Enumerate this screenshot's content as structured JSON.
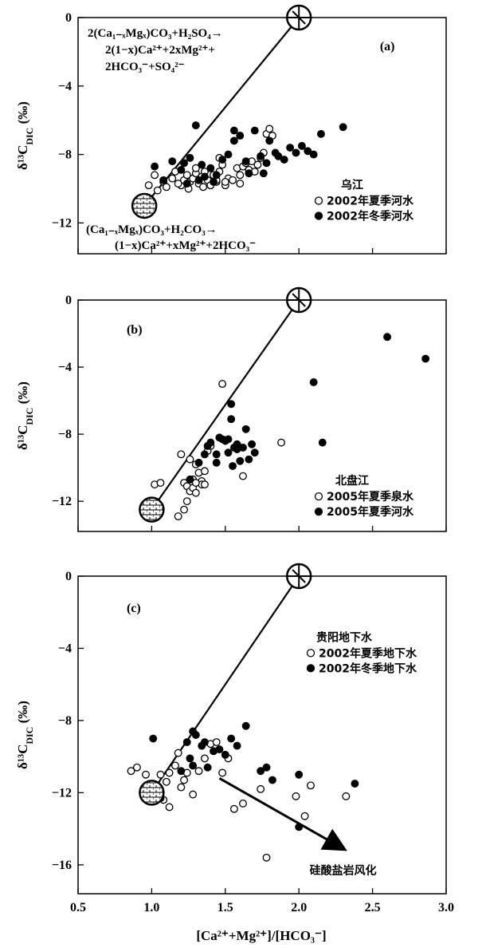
{
  "xlabel": "[Ca²⁺+Mg²⁺]/[HCO₃⁻]",
  "xticks": [
    "0.5",
    "1.0",
    "1.5",
    "2.0",
    "2.5",
    "3.0"
  ],
  "chart_data": [
    {
      "type": "scatter",
      "panel_label": "(a)",
      "ylabel": "δ¹³C_DIC (‰)",
      "xlim": [
        0.5,
        3.0
      ],
      "ylim": [
        -13.8,
        0
      ],
      "yticks": [
        0,
        -4,
        -8,
        -12
      ],
      "legend_title": "乌江",
      "legend_placement": "right",
      "line": [
        [
          0.95,
          -11
        ],
        [
          2.0,
          0
        ]
      ],
      "endmembers": [
        [
          2.0,
          0
        ],
        [
          0.95,
          -11
        ]
      ],
      "equation_top": [
        "2(Ca₁₋ₓMgₓ)CO₃+H₂SO₄→",
        "2(1−x)Ca²⁺+2xMg²⁺+",
        "2HCO₃⁻+SO₄²⁻"
      ],
      "equation_bottom": [
        "(Ca₁₋ₓMgₓ)CO₃+H₂CO₃→",
        "(1−x)Ca²⁺+xMg²⁺+2HCO₃⁻"
      ],
      "series": [
        {
          "name": "2002年夏季河水",
          "marker": "open",
          "x": [
            0.98,
            1.02,
            1.04,
            1.08,
            1.1,
            1.14,
            1.16,
            1.2,
            1.22,
            1.24,
            1.26,
            1.28,
            1.3,
            1.32,
            1.34,
            1.36,
            1.38,
            1.4,
            1.42,
            1.44,
            1.46,
            1.48,
            1.5,
            1.52,
            1.55,
            1.58,
            1.6,
            1.62,
            1.64,
            1.66,
            1.68,
            1.7,
            1.72,
            1.74,
            1.76,
            1.78,
            1.8,
            1.82,
            1.46,
            1.3,
            1.18,
            1.25,
            1.35,
            1.44,
            1.5,
            1.6
          ],
          "y": [
            -9.8,
            -9.2,
            -10.1,
            -9.6,
            -9.9,
            -9.4,
            -9.0,
            -9.8,
            -9.5,
            -9.2,
            -9.6,
            -9.4,
            -9.1,
            -9.7,
            -9.3,
            -9.0,
            -9.5,
            -9.8,
            -9.2,
            -9.6,
            -9.0,
            -8.6,
            -9.8,
            -9.4,
            -9.5,
            -8.8,
            -9.2,
            -8.7,
            -8.5,
            -8.9,
            -8.4,
            -9.0,
            -8.6,
            -8.2,
            -7.9,
            -6.8,
            -6.5,
            -6.9,
            -8.2,
            -8.8,
            -9.7,
            -10.0,
            -9.9,
            -9.5,
            -9.6,
            -9.7
          ]
        },
        {
          "name": "2002年冬季河水",
          "marker": "filled",
          "x": [
            1.02,
            1.08,
            1.14,
            1.2,
            1.22,
            1.26,
            1.3,
            1.34,
            1.36,
            1.4,
            1.44,
            1.48,
            1.52,
            1.56,
            1.6,
            1.64,
            1.7,
            1.74,
            1.78,
            1.8,
            1.84,
            1.86,
            1.9,
            1.94,
            1.98,
            2.02,
            2.06,
            2.1,
            2.15,
            2.3,
            1.24,
            1.32,
            1.42,
            1.56,
            1.66,
            1.76
          ],
          "y": [
            -8.7,
            -9.5,
            -8.4,
            -8.9,
            -8.5,
            -8.2,
            -6.3,
            -8.6,
            -9.3,
            -8.8,
            -9.2,
            -8.3,
            -8.0,
            -7.2,
            -6.9,
            -8.4,
            -6.6,
            -8.1,
            -8.5,
            -7.2,
            -7.9,
            -8.1,
            -8.3,
            -7.6,
            -7.9,
            -7.5,
            -7.8,
            -8.0,
            -6.8,
            -6.4,
            -9.7,
            -9.5,
            -9.6,
            -6.6,
            -9.1,
            -9.1
          ]
        }
      ]
    },
    {
      "type": "scatter",
      "panel_label": "(b)",
      "ylabel": "δ¹³C_DIC (‰)",
      "xlim": [
        0.5,
        3.0
      ],
      "ylim": [
        -13.8,
        0
      ],
      "yticks": [
        0,
        -4,
        -8,
        -12
      ],
      "legend_title": "北盘江",
      "legend_placement": "right",
      "line": [
        [
          1.0,
          -12.5
        ],
        [
          2.0,
          0
        ]
      ],
      "endmembers": [
        [
          2.0,
          0
        ],
        [
          1.0,
          -12.5
        ]
      ],
      "series": [
        {
          "name": "2005年夏季泉水",
          "marker": "open",
          "x": [
            1.02,
            1.06,
            1.2,
            1.22,
            1.24,
            1.26,
            1.28,
            1.3,
            1.32,
            1.34,
            1.36,
            1.38,
            1.26,
            1.28,
            1.3,
            1.34,
            1.4,
            1.48,
            1.62,
            1.88,
            1.24,
            1.3,
            1.18,
            1.22,
            1.36
          ],
          "y": [
            -11.0,
            -10.9,
            -9.2,
            -10.9,
            -11.1,
            -11.4,
            -11.2,
            -9.8,
            -10.3,
            -10.8,
            -10.2,
            -9.0,
            -9.5,
            -10.7,
            -11.5,
            -11.0,
            -8.7,
            -5.0,
            -10.5,
            -8.5,
            -12.0,
            -10.9,
            -12.9,
            -12.5,
            -11.0
          ]
        },
        {
          "name": "2005年夏季河水",
          "marker": "filled",
          "x": [
            1.26,
            1.32,
            1.36,
            1.4,
            1.44,
            1.48,
            1.5,
            1.52,
            1.54,
            1.56,
            1.58,
            1.6,
            1.62,
            1.64,
            1.66,
            1.68,
            1.7,
            1.46,
            1.52,
            1.54,
            1.38,
            1.58,
            2.1,
            2.16,
            2.6,
            2.86,
            1.44,
            1.55
          ],
          "y": [
            -10.7,
            -9.7,
            -9.2,
            -8.5,
            -9.2,
            -8.3,
            -8.4,
            -9.1,
            -6.2,
            -8.8,
            -8.6,
            -9.6,
            -8.8,
            -7.7,
            -9.5,
            -8.6,
            -9.1,
            -8.2,
            -8.3,
            -7.1,
            -8.7,
            -8.9,
            -4.9,
            -8.5,
            -2.2,
            -3.5,
            -9.7,
            -9.9
          ]
        }
      ]
    },
    {
      "type": "scatter",
      "panel_label": "(c)",
      "ylabel": "δ¹³C_DIC (‰)",
      "xlim": [
        0.5,
        3.0
      ],
      "ylim": [
        -17.6,
        0
      ],
      "yticks": [
        0,
        -4,
        -8,
        -12,
        -16
      ],
      "legend_title": "贵阳地下水",
      "legend_placement": "top-right",
      "line": [
        [
          1.0,
          -12
        ],
        [
          2.0,
          0
        ]
      ],
      "endmembers": [
        [
          2.0,
          0
        ],
        [
          1.0,
          -12
        ]
      ],
      "arrow": {
        "from": [
          1.46,
          -11.2
        ],
        "to": [
          2.3,
          -15.1
        ],
        "label": "硅酸盐岩风化"
      },
      "series": [
        {
          "name": "2002年夏季地下水",
          "marker": "open",
          "x": [
            0.86,
            0.9,
            0.96,
            1.02,
            1.06,
            1.08,
            1.12,
            1.16,
            1.2,
            1.24,
            1.28,
            1.32,
            1.36,
            1.4,
            1.44,
            1.48,
            1.52,
            1.56,
            1.62,
            1.74,
            1.78,
            1.98,
            2.04,
            2.08,
            2.32,
            1.1,
            1.18,
            1.22,
            1.12
          ],
          "y": [
            -10.8,
            -10.6,
            -11.0,
            -11.8,
            -11.0,
            -12.4,
            -12.8,
            -10.5,
            -11.7,
            -10.9,
            -12.1,
            -10.8,
            -10.1,
            -9.3,
            -9.2,
            -10.9,
            -10.1,
            -12.9,
            -12.6,
            -11.8,
            -15.6,
            -12.2,
            -13.3,
            -11.6,
            -12.2,
            -11.4,
            -9.8,
            -11.3,
            -10.9
          ]
        },
        {
          "name": "2002年冬季地下水",
          "marker": "filled",
          "x": [
            1.01,
            1.06,
            1.2,
            1.24,
            1.26,
            1.3,
            1.34,
            1.38,
            1.42,
            1.46,
            1.5,
            1.54,
            1.58,
            1.64,
            1.74,
            1.78,
            1.82,
            2.0,
            2.0,
            2.38,
            1.28,
            1.36,
            1.28
          ],
          "y": [
            -9.0,
            -12.3,
            -10.8,
            -9.2,
            -10.1,
            -8.8,
            -9.4,
            -10.6,
            -9.7,
            -9.6,
            -9.9,
            -9.0,
            -9.4,
            -8.3,
            -10.8,
            -10.6,
            -11.3,
            -11.0,
            -13.9,
            -11.5,
            -8.6,
            -9.2,
            -10.5
          ]
        }
      ]
    }
  ]
}
